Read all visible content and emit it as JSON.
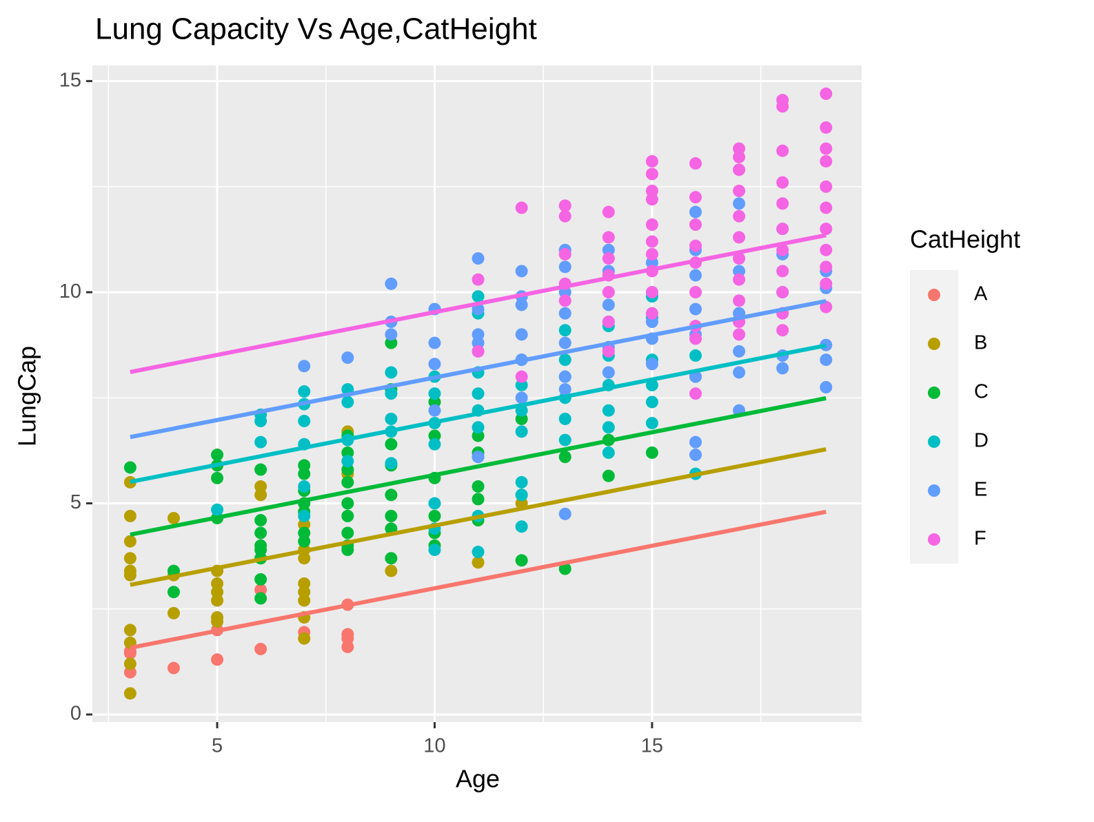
{
  "chart_data": {
    "type": "scatter",
    "title": "Lung Capacity Vs Age,CatHeight",
    "x_label": "Age",
    "y_label": "LungCap",
    "legend_title": "CatHeight",
    "xlim": [
      2.13,
      19.82
    ],
    "ylim": [
      -0.18,
      15.37
    ],
    "xticks": [
      5,
      10,
      15
    ],
    "yticks": [
      0,
      5,
      10,
      15
    ],
    "minor_xticks": [
      2.5,
      7.5,
      12.5,
      17.5
    ],
    "minor_yticks": [
      2.5,
      7.5,
      12.5
    ],
    "grid": true,
    "legend": "right",
    "series": [
      {
        "name": "A",
        "color": "#F8766D",
        "fit_x": [
          3,
          19
        ],
        "fit_y": [
          1.58,
          4.8
        ],
        "x": [
          3,
          3,
          3,
          4,
          5,
          5,
          6,
          6,
          7,
          8,
          8,
          8,
          8
        ],
        "values": [
          1.45,
          1.0,
          1.5,
          1.1,
          1.3,
          2.0,
          1.55,
          2.95,
          1.95,
          1.9,
          1.6,
          2.6,
          1.8
        ]
      },
      {
        "name": "B",
        "color": "#B79F00",
        "fit_x": [
          3,
          19
        ],
        "fit_y": [
          3.07,
          6.28
        ],
        "x": [
          3,
          3,
          3,
          3,
          3,
          3,
          3,
          3,
          3,
          3,
          4,
          4,
          4,
          5,
          5,
          5,
          5,
          5,
          5,
          6,
          6,
          6,
          7,
          7,
          7,
          7,
          7,
          7,
          7,
          7,
          8,
          8,
          9,
          11,
          12
        ],
        "values": [
          5.5,
          4.7,
          4.1,
          3.7,
          3.4,
          3.3,
          2.0,
          1.7,
          1.2,
          0.5,
          4.65,
          3.3,
          2.4,
          3.4,
          3.1,
          2.9,
          2.7,
          2.3,
          2.2,
          5.4,
          5.2,
          3.7,
          4.5,
          3.9,
          3.7,
          3.1,
          2.9,
          2.7,
          2.3,
          1.8,
          6.7,
          5.7,
          3.4,
          3.6,
          5.0
        ]
      },
      {
        "name": "C",
        "color": "#00BA38",
        "fit_x": [
          3,
          19
        ],
        "fit_y": [
          4.26,
          7.49
        ],
        "x": [
          3,
          4,
          4,
          5,
          5,
          5,
          5,
          6,
          6,
          6,
          6,
          6,
          6,
          6,
          6,
          7,
          7,
          7,
          7,
          7,
          7,
          7,
          8,
          8,
          8,
          8,
          8,
          8,
          8,
          8,
          8,
          9,
          9,
          9,
          9,
          9,
          9,
          9,
          9,
          10,
          10,
          10,
          10,
          10,
          10,
          11,
          11,
          11,
          11,
          11,
          12,
          12,
          12,
          13,
          13,
          14,
          14,
          15
        ],
        "values": [
          5.85,
          3.4,
          2.9,
          6.15,
          5.9,
          5.6,
          4.65,
          5.8,
          4.6,
          4.3,
          4.0,
          3.9,
          3.7,
          3.2,
          2.75,
          5.9,
          5.7,
          5.3,
          5.0,
          4.8,
          4.3,
          4.1,
          6.6,
          6.2,
          5.8,
          5.5,
          5.0,
          4.7,
          4.3,
          4.0,
          3.9,
          8.8,
          7.7,
          6.4,
          5.9,
          5.2,
          4.7,
          4.4,
          3.7,
          7.4,
          6.6,
          5.6,
          4.7,
          4.3,
          4.0,
          6.6,
          6.2,
          5.4,
          5.1,
          4.6,
          7.0,
          5.2,
          3.65,
          6.1,
          3.45,
          6.5,
          5.65,
          6.2
        ]
      },
      {
        "name": "D",
        "color": "#00BFC4",
        "fit_x": [
          3,
          19
        ],
        "fit_y": [
          5.51,
          8.74
        ],
        "x": [
          5,
          6,
          6,
          6,
          7,
          7,
          7,
          7,
          7,
          7,
          8,
          8,
          8,
          8,
          9,
          9,
          9,
          9,
          9,
          10,
          10,
          10,
          10,
          10,
          10,
          10,
          11,
          11,
          11,
          11,
          11,
          11,
          11,
          11,
          11,
          11,
          12,
          12,
          12,
          12,
          12,
          12,
          12,
          13,
          13,
          13,
          13,
          13,
          13,
          14,
          14,
          14,
          14,
          14,
          14,
          15,
          15,
          15,
          15,
          15,
          15,
          16,
          16,
          16
        ],
        "values": [
          4.85,
          7.1,
          6.95,
          6.45,
          7.65,
          7.35,
          6.95,
          6.4,
          5.4,
          4.7,
          7.7,
          7.4,
          6.5,
          6.0,
          8.1,
          7.6,
          7.0,
          6.7,
          5.95,
          8.0,
          7.6,
          6.9,
          6.4,
          5.0,
          4.4,
          3.9,
          9.9,
          9.5,
          8.6,
          8.1,
          7.6,
          7.2,
          6.8,
          6.1,
          4.7,
          3.85,
          8.4,
          7.8,
          7.2,
          6.7,
          5.5,
          5.2,
          4.45,
          9.1,
          8.4,
          8.0,
          7.5,
          7.0,
          6.5,
          9.2,
          8.5,
          7.8,
          7.2,
          6.8,
          6.2,
          9.9,
          9.4,
          8.4,
          7.8,
          7.4,
          6.9,
          8.5,
          8.0,
          5.7
        ]
      },
      {
        "name": "E",
        "color": "#619CFF",
        "fit_x": [
          3,
          19
        ],
        "fit_y": [
          6.57,
          9.79
        ],
        "x": [
          7,
          8,
          9,
          9,
          9,
          10,
          10,
          10,
          10,
          11,
          11,
          11,
          11,
          11,
          12,
          12,
          12,
          12,
          12,
          12,
          13,
          13,
          13,
          13,
          13,
          13,
          13,
          13,
          14,
          14,
          14,
          14,
          14,
          14,
          15,
          15,
          15,
          15,
          15,
          16,
          16,
          16,
          16,
          16,
          16,
          16,
          16,
          17,
          17,
          17,
          17,
          17,
          17,
          18,
          18,
          18,
          18,
          18,
          19,
          19,
          19,
          19,
          19
        ],
        "values": [
          8.25,
          8.45,
          10.2,
          9.3,
          9.0,
          9.6,
          8.8,
          8.3,
          7.2,
          10.8,
          9.6,
          9.0,
          8.8,
          6.1,
          10.5,
          9.9,
          9.7,
          9.0,
          8.4,
          7.5,
          11.0,
          10.6,
          10.0,
          9.5,
          8.8,
          8.0,
          7.7,
          4.75,
          11.0,
          10.5,
          9.7,
          9.3,
          8.7,
          8.1,
          10.7,
          10.0,
          9.3,
          8.9,
          8.3,
          11.9,
          11.0,
          10.4,
          9.6,
          9.0,
          8.0,
          6.45,
          6.15,
          12.1,
          10.5,
          9.5,
          8.6,
          8.1,
          7.2,
          11.5,
          10.9,
          10.0,
          8.5,
          8.2,
          10.5,
          10.1,
          8.75,
          8.4,
          7.75
        ]
      },
      {
        "name": "F",
        "color": "#F564E3",
        "fit_x": [
          3,
          19
        ],
        "fit_y": [
          8.11,
          11.35
        ],
        "x": [
          11,
          11,
          12,
          12,
          13,
          13,
          13,
          13,
          13,
          14,
          14,
          14,
          14,
          14,
          14,
          14,
          15,
          15,
          15,
          15,
          15,
          15,
          15,
          15,
          15,
          15,
          16,
          16,
          16,
          16,
          16,
          16,
          16,
          16,
          16,
          17,
          17,
          17,
          17,
          17,
          17,
          17,
          17,
          17,
          17,
          17,
          18,
          18,
          18,
          18,
          18,
          18,
          18,
          18,
          18,
          18,
          18,
          19,
          19,
          19,
          19,
          19,
          19,
          19,
          19,
          19,
          19,
          19
        ],
        "values": [
          10.3,
          8.6,
          12.0,
          8.0,
          12.05,
          11.8,
          10.9,
          10.2,
          9.8,
          11.9,
          11.3,
          10.8,
          10.4,
          10.0,
          9.3,
          8.6,
          13.1,
          12.8,
          12.4,
          12.2,
          11.6,
          11.2,
          10.9,
          10.5,
          10.0,
          9.5,
          13.05,
          12.25,
          11.6,
          11.1,
          10.7,
          10.0,
          9.2,
          8.9,
          7.6,
          13.4,
          13.2,
          12.9,
          12.4,
          11.8,
          11.3,
          10.8,
          10.3,
          9.8,
          9.3,
          9.0,
          14.55,
          14.4,
          13.35,
          12.6,
          12.1,
          11.5,
          11.0,
          10.5,
          10.0,
          9.5,
          9.1,
          14.7,
          13.9,
          13.4,
          13.1,
          12.5,
          12.0,
          11.5,
          11.0,
          10.6,
          10.2,
          9.65
        ]
      }
    ]
  }
}
